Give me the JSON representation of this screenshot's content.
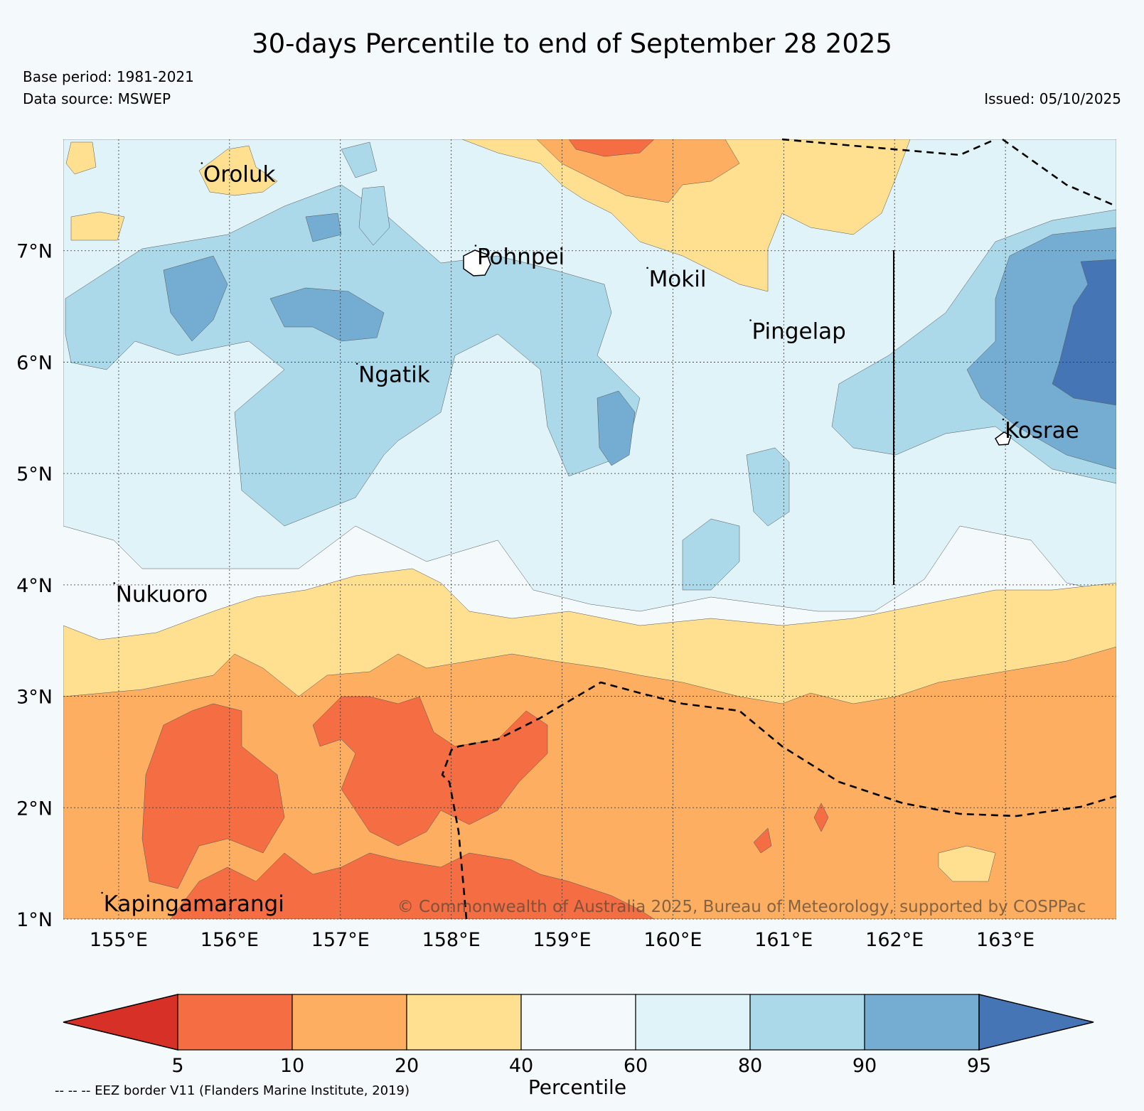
{
  "header": {
    "title": "30-days Percentile to end of September 28 2025",
    "base_period": "Base period: 1981-2021",
    "data_source": "Data source: MSWEP",
    "issued": "Issued: 05/10/2025"
  },
  "map": {
    "lon_range": [
      154.5,
      164.0
    ],
    "lat_range": [
      1.0,
      8.0
    ],
    "x_ticks": [
      "155°E",
      "156°E",
      "157°E",
      "158°E",
      "159°E",
      "160°E",
      "161°E",
      "162°E",
      "163°E"
    ],
    "y_ticks": [
      "7°N",
      "6°N",
      "5°N",
      "4°N",
      "3°N",
      "2°N",
      "1°N"
    ],
    "places": [
      {
        "name": "Oroluk",
        "lon": 155.75,
        "lat": 7.62
      },
      {
        "name": "Pohnpei",
        "lon": 158.22,
        "lat": 6.88
      },
      {
        "name": "Mokil",
        "lon": 159.77,
        "lat": 6.68
      },
      {
        "name": "Pingelap",
        "lon": 160.7,
        "lat": 6.21
      },
      {
        "name": "Ngatik",
        "lon": 157.15,
        "lat": 5.82
      },
      {
        "name": "Kosrae",
        "lon": 162.98,
        "lat": 5.32
      },
      {
        "name": "Nukuoro",
        "lon": 154.96,
        "lat": 3.85
      },
      {
        "name": "Kapingamarangi",
        "lon": 154.85,
        "lat": 1.07
      }
    ],
    "copyright": "© Commonwealth of Australia 2025, Bureau of Meteorology, supported by COSPPac"
  },
  "colorbar": {
    "label": "Percentile",
    "ticks": [
      "5",
      "10",
      "20",
      "40",
      "60",
      "80",
      "90",
      "95"
    ],
    "colors": [
      "#d73027",
      "#f46d43",
      "#fdae61",
      "#fee090",
      "#f4f9fb",
      "#e0f3f8",
      "#abd9e9",
      "#74add1",
      "#4575b4"
    ]
  },
  "footnote": "-- -- -- EEZ border V11 (Flanders Marine Institute, 2019)"
}
